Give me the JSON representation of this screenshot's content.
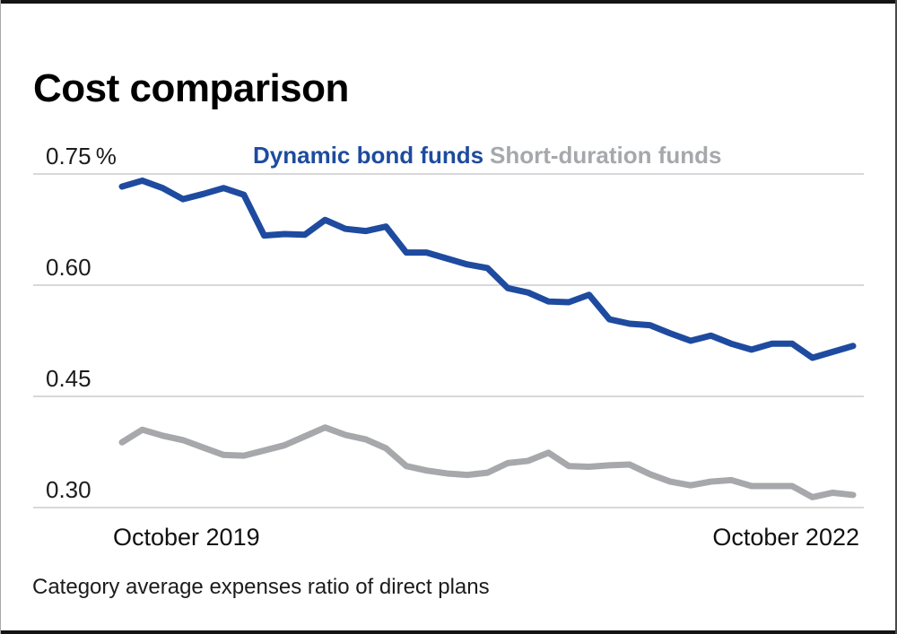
{
  "card": {
    "title": "Cost comparison",
    "footnote": "Category average expenses ratio of direct plans"
  },
  "colors": {
    "dynamic_bond_blue": "#1e4b9f",
    "short_duration_gray": "#a6a8ab",
    "gridline": "#cbcccd",
    "text": "#1c1c1c",
    "frame_bar": "#141414"
  },
  "chart_data": {
    "type": "line",
    "title": "Cost comparison",
    "unit": "percent",
    "x_axis": {
      "start_label": "October 2019",
      "end_label": "October 2022",
      "points": 37,
      "interval": "monthly"
    },
    "y_axis": {
      "ticks": [
        0.75,
        0.6,
        0.45,
        0.3
      ],
      "tick_labels": [
        "0.75 %",
        "0.60",
        "0.45",
        "0.30"
      ],
      "ylim": [
        0.3,
        0.75
      ],
      "grid": true
    },
    "legend": [
      {
        "label": "Dynamic bond funds",
        "color": "#1e4b9f"
      },
      {
        "label": "Short-duration funds",
        "color": "#a6a8ab"
      }
    ],
    "series": [
      {
        "name": "Dynamic bond funds",
        "color": "#1e4b9f",
        "values": [
          0.733,
          0.741,
          0.731,
          0.716,
          0.723,
          0.731,
          0.722,
          0.667,
          0.669,
          0.668,
          0.688,
          0.676,
          0.673,
          0.679,
          0.644,
          0.644,
          0.636,
          0.628,
          0.623,
          0.596,
          0.59,
          0.578,
          0.577,
          0.587,
          0.554,
          0.548,
          0.546,
          0.535,
          0.525,
          0.532,
          0.521,
          0.513,
          0.521,
          0.521,
          0.502,
          0.51,
          0.518
        ]
      },
      {
        "name": "Short-duration funds",
        "color": "#a6a8ab",
        "values": [
          0.388,
          0.405,
          0.397,
          0.391,
          0.381,
          0.371,
          0.37,
          0.377,
          0.384,
          0.396,
          0.408,
          0.398,
          0.392,
          0.38,
          0.356,
          0.35,
          0.346,
          0.344,
          0.347,
          0.36,
          0.363,
          0.374,
          0.356,
          0.355,
          0.357,
          0.358,
          0.345,
          0.335,
          0.33,
          0.335,
          0.337,
          0.329,
          0.329,
          0.329,
          0.314,
          0.32,
          0.317
        ]
      }
    ]
  }
}
